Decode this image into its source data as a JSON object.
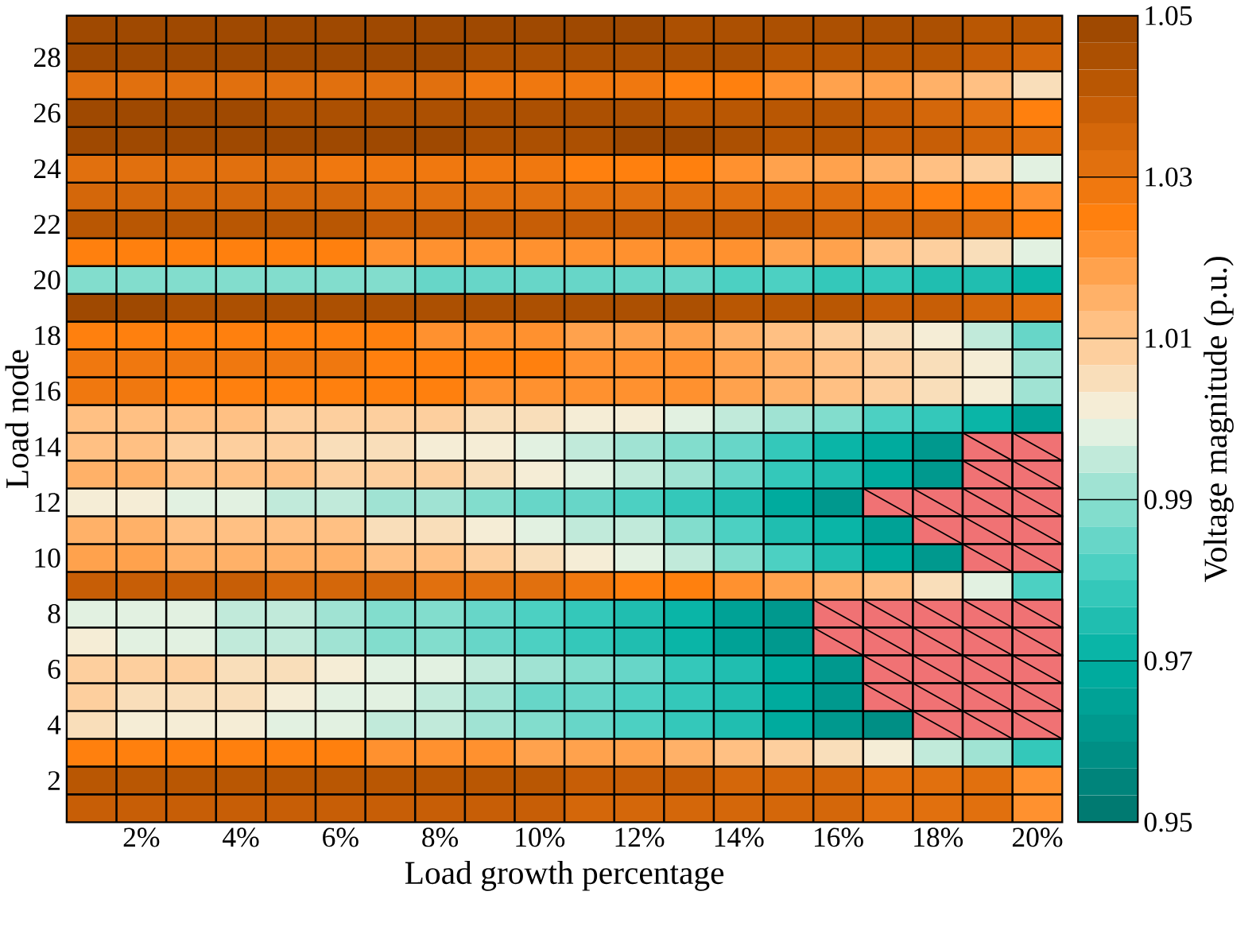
{
  "chart_data": {
    "type": "heatmap",
    "xlabel": "Load growth percentage",
    "ylabel": "Load node",
    "clabel": "Voltage magnitude (p.u.)",
    "categories": [
      null,
      "2%",
      null,
      "4%",
      null,
      "6%",
      null,
      "8%",
      null,
      "10%",
      null,
      "12%",
      null,
      "14%",
      null,
      "16%",
      null,
      "18%",
      null,
      "20%"
    ],
    "y_categories": [
      null,
      "28",
      null,
      "26",
      null,
      "24",
      null,
      "22",
      null,
      "20",
      null,
      "18",
      null,
      "16",
      null,
      "14",
      null,
      "12",
      null,
      "10",
      null,
      "8",
      null,
      "6",
      null,
      "4",
      null,
      "2",
      null
    ],
    "cells": [
      [
        1.048,
        1.048,
        1.048,
        1.048,
        1.048,
        1.048,
        1.048,
        1.048,
        1.048,
        1.048,
        1.048,
        1.048,
        1.045,
        1.045,
        1.045,
        1.045,
        1.045,
        1.045,
        1.042,
        1.042
      ],
      [
        1.047,
        1.047,
        1.047,
        1.047,
        1.047,
        1.047,
        1.047,
        1.047,
        1.045,
        1.045,
        1.045,
        1.045,
        1.045,
        1.045,
        1.042,
        1.042,
        1.04,
        1.04,
        1.038,
        1.035
      ],
      [
        1.032,
        1.032,
        1.032,
        1.032,
        1.032,
        1.032,
        1.03,
        1.03,
        1.028,
        1.028,
        1.028,
        1.028,
        1.025,
        1.025,
        1.022,
        1.018,
        1.018,
        1.015,
        1.012,
        1.005
      ],
      [
        1.048,
        1.048,
        1.048,
        1.048,
        1.045,
        1.045,
        1.045,
        1.045,
        1.045,
        1.045,
        1.045,
        1.045,
        1.042,
        1.042,
        1.042,
        1.04,
        1.038,
        1.035,
        1.033,
        1.025
      ],
      [
        1.048,
        1.048,
        1.048,
        1.048,
        1.048,
        1.048,
        1.048,
        1.048,
        1.045,
        1.045,
        1.045,
        1.048,
        1.048,
        1.045,
        1.042,
        1.04,
        1.038,
        1.037,
        1.035,
        1.03
      ],
      [
        1.032,
        1.032,
        1.032,
        1.032,
        1.032,
        1.028,
        1.028,
        1.028,
        1.028,
        1.028,
        1.025,
        1.025,
        1.025,
        1.022,
        1.018,
        1.018,
        1.015,
        1.012,
        1.008,
        0.998
      ],
      [
        1.035,
        1.035,
        1.035,
        1.035,
        1.035,
        1.035,
        1.032,
        1.032,
        1.032,
        1.032,
        1.032,
        1.033,
        1.033,
        1.032,
        1.03,
        1.03,
        1.028,
        1.025,
        1.025,
        1.02
      ],
      [
        1.04,
        1.04,
        1.04,
        1.04,
        1.04,
        1.04,
        1.038,
        1.038,
        1.038,
        1.038,
        1.038,
        1.038,
        1.038,
        1.038,
        1.038,
        1.035,
        1.035,
        1.035,
        1.033,
        1.025
      ],
      [
        1.025,
        1.025,
        1.025,
        1.025,
        1.025,
        1.025,
        1.022,
        1.022,
        1.022,
        1.022,
        1.022,
        1.022,
        1.02,
        1.02,
        1.017,
        1.017,
        1.012,
        1.008,
        1.005,
        0.998
      ],
      [
        0.988,
        0.988,
        0.988,
        0.988,
        0.988,
        0.988,
        0.988,
        0.985,
        0.985,
        0.985,
        0.985,
        0.985,
        0.985,
        0.982,
        0.982,
        0.978,
        0.978,
        0.975,
        0.975,
        0.972
      ],
      [
        1.048,
        1.048,
        1.045,
        1.045,
        1.045,
        1.045,
        1.045,
        1.045,
        1.045,
        1.045,
        1.045,
        1.045,
        1.045,
        1.042,
        1.042,
        1.042,
        1.038,
        1.038,
        1.035,
        1.03
      ],
      [
        1.025,
        1.025,
        1.025,
        1.025,
        1.025,
        1.025,
        1.025,
        1.022,
        1.022,
        1.022,
        1.018,
        1.018,
        1.018,
        1.016,
        1.012,
        1.008,
        1.005,
        1.002,
        0.995,
        0.985
      ],
      [
        1.028,
        1.028,
        1.028,
        1.028,
        1.028,
        1.028,
        1.025,
        1.025,
        1.025,
        1.025,
        1.022,
        1.022,
        1.022,
        1.018,
        1.015,
        1.012,
        1.008,
        1.005,
        1.002,
        0.992
      ],
      [
        1.028,
        1.028,
        1.025,
        1.025,
        1.025,
        1.025,
        1.025,
        1.025,
        1.022,
        1.022,
        1.022,
        1.022,
        1.02,
        1.017,
        1.015,
        1.012,
        1.008,
        1.005,
        1.002,
        0.992
      ],
      [
        1.012,
        1.012,
        1.012,
        1.012,
        1.008,
        1.008,
        1.008,
        1.008,
        1.005,
        1.005,
        1.002,
        1.002,
        0.998,
        0.995,
        0.992,
        0.988,
        0.982,
        0.978,
        0.972,
        0.965
      ],
      [
        1.012,
        1.012,
        1.008,
        1.008,
        1.008,
        1.005,
        1.005,
        1.002,
        1.002,
        0.998,
        0.995,
        0.992,
        0.988,
        0.985,
        0.978,
        0.972,
        0.968,
        0.96,
        null,
        null
      ],
      [
        1.016,
        1.016,
        1.012,
        1.012,
        1.012,
        1.008,
        1.008,
        1.008,
        1.005,
        1.002,
        0.998,
        0.995,
        0.992,
        0.985,
        0.978,
        0.975,
        0.968,
        0.96,
        null,
        null
      ],
      [
        1.002,
        1.002,
        0.998,
        0.998,
        0.995,
        0.995,
        0.992,
        0.992,
        0.988,
        0.985,
        0.985,
        0.982,
        0.978,
        0.975,
        0.968,
        0.96,
        null,
        null,
        null,
        null
      ],
      [
        1.014,
        1.014,
        1.012,
        1.012,
        1.012,
        1.012,
        1.005,
        1.005,
        1.002,
        0.998,
        0.995,
        0.995,
        0.988,
        0.982,
        0.975,
        0.972,
        0.965,
        null,
        null,
        null
      ],
      [
        1.018,
        1.018,
        1.015,
        1.015,
        1.015,
        1.015,
        1.012,
        1.012,
        1.008,
        1.005,
        1.002,
        0.998,
        0.995,
        0.988,
        0.982,
        0.975,
        0.968,
        0.962,
        null,
        null
      ],
      [
        1.038,
        1.038,
        1.038,
        1.038,
        1.035,
        1.035,
        1.035,
        1.032,
        1.032,
        1.032,
        1.028,
        1.025,
        1.025,
        1.022,
        1.018,
        1.015,
        1.012,
        1.005,
        0.998,
        0.982
      ],
      [
        0.998,
        0.998,
        0.998,
        0.995,
        0.995,
        0.992,
        0.988,
        0.988,
        0.985,
        0.982,
        0.978,
        0.975,
        0.97,
        0.965,
        0.96,
        null,
        null,
        null,
        null,
        null
      ],
      [
        1.002,
        0.998,
        0.998,
        0.995,
        0.995,
        0.992,
        0.988,
        0.988,
        0.985,
        0.982,
        0.978,
        0.975,
        0.97,
        0.965,
        0.96,
        null,
        null,
        null,
        null,
        null
      ],
      [
        1.008,
        1.008,
        1.008,
        1.005,
        1.005,
        1.002,
        0.998,
        0.998,
        0.995,
        0.992,
        0.988,
        0.985,
        0.978,
        0.975,
        0.968,
        0.962,
        null,
        null,
        null,
        null
      ],
      [
        1.008,
        1.005,
        1.005,
        1.005,
        1.002,
        0.998,
        0.998,
        0.995,
        0.992,
        0.985,
        0.985,
        0.982,
        0.978,
        0.975,
        0.968,
        0.962,
        null,
        null,
        null,
        null
      ],
      [
        1.005,
        1.002,
        1.002,
        1.002,
        0.998,
        0.998,
        0.995,
        0.995,
        0.992,
        0.988,
        0.985,
        0.982,
        0.978,
        0.975,
        0.968,
        0.962,
        0.958,
        null,
        null,
        null
      ],
      [
        1.025,
        1.025,
        1.025,
        1.025,
        1.025,
        1.025,
        1.022,
        1.022,
        1.022,
        1.018,
        1.018,
        1.018,
        1.015,
        1.012,
        1.008,
        1.005,
        1.002,
        0.995,
        0.992,
        0.978
      ],
      [
        1.04,
        1.04,
        1.04,
        1.04,
        1.04,
        1.04,
        1.04,
        1.04,
        1.04,
        1.04,
        1.038,
        1.038,
        1.038,
        1.035,
        1.035,
        1.035,
        1.032,
        1.032,
        1.03,
        1.022
      ],
      [
        1.038,
        1.038,
        1.038,
        1.038,
        1.038,
        1.038,
        1.038,
        1.038,
        1.038,
        1.038,
        1.035,
        1.035,
        1.035,
        1.035,
        1.035,
        1.035,
        1.032,
        1.032,
        1.03,
        1.022
      ]
    ],
    "clim": [
      0.95,
      1.05
    ],
    "cticks": [
      0.95,
      0.97,
      0.99,
      1.01,
      1.03,
      1.05
    ]
  }
}
